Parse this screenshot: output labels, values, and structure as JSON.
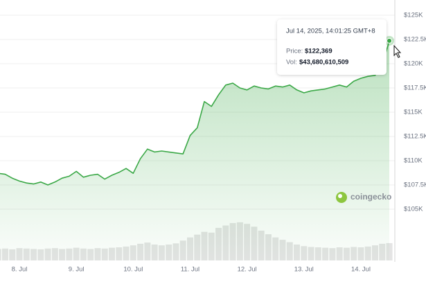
{
  "chart_data": {
    "type": "line",
    "categories": [
      null,
      null,
      null,
      "8. Jul",
      null,
      null,
      null,
      null,
      null,
      null,
      null,
      "9. Jul",
      null,
      null,
      null,
      null,
      null,
      null,
      null,
      "10. Jul",
      null,
      null,
      null,
      null,
      null,
      null,
      null,
      "11. Jul",
      null,
      null,
      null,
      null,
      null,
      null,
      null,
      "12. Jul",
      null,
      null,
      null,
      null,
      null,
      null,
      null,
      "13. Jul",
      null,
      null,
      null,
      null,
      null,
      null,
      null,
      "14. Jul",
      null,
      null,
      null,
      null
    ],
    "series": [
      {
        "name": "Price",
        "color": "#3aa846",
        "values": [
          108700,
          108600,
          108200,
          107900,
          107700,
          107600,
          107800,
          107500,
          107800,
          108200,
          108400,
          108900,
          108300,
          108500,
          108600,
          108100,
          108500,
          108800,
          109200,
          108700,
          110200,
          111200,
          110900,
          111000,
          110900,
          110800,
          110700,
          112600,
          113400,
          116100,
          115600,
          116800,
          117800,
          118000,
          117500,
          117300,
          117700,
          117500,
          117400,
          117700,
          117600,
          117800,
          117300,
          117000,
          117200,
          117300,
          117400,
          117600,
          117800,
          117600,
          118200,
          118500,
          118700,
          118800,
          119800,
          122369
        ]
      },
      {
        "name": "Volume",
        "color": "#e4e4e4",
        "axis": "y2",
        "values": [
          29000000000,
          30000000000,
          28000000000,
          31000000000,
          30000000000,
          29000000000,
          28000000000,
          30000000000,
          31000000000,
          29000000000,
          30000000000,
          32000000000,
          30000000000,
          29000000000,
          31000000000,
          30000000000,
          32000000000,
          33000000000,
          35000000000,
          38000000000,
          42000000000,
          45000000000,
          40000000000,
          38000000000,
          40000000000,
          43000000000,
          50000000000,
          58000000000,
          65000000000,
          72000000000,
          70000000000,
          82000000000,
          88000000000,
          94000000000,
          96000000000,
          92000000000,
          85000000000,
          75000000000,
          66000000000,
          58000000000,
          52000000000,
          46000000000,
          40000000000,
          36000000000,
          34000000000,
          33000000000,
          32000000000,
          31000000000,
          33000000000,
          32000000000,
          34000000000,
          33000000000,
          35000000000,
          38000000000,
          42000000000,
          43680610509
        ]
      }
    ],
    "ylim": [
      100000,
      126500
    ],
    "yticks": [
      {
        "value": 105000,
        "label": "$105K"
      },
      {
        "value": 107500,
        "label": "$107.5K"
      },
      {
        "value": 110000,
        "label": "$110K"
      },
      {
        "value": 112500,
        "label": "$112.5K"
      },
      {
        "value": 115000,
        "label": "$115K"
      },
      {
        "value": 117500,
        "label": "$117.5K"
      },
      {
        "value": 120000,
        "label": "$120K"
      },
      {
        "value": 122500,
        "label": "$122.5K"
      },
      {
        "value": 125000,
        "label": "$125K"
      }
    ],
    "y2lim": [
      0,
      650000000000
    ],
    "grid": true,
    "watermark": "coingecko",
    "tooltip": {
      "date": "Jul 14, 2025, 14:01:25 GMT+8",
      "price_label": "Price:",
      "price": "$122,369",
      "volume_label": "Vol:",
      "volume": "$43,680,610,509"
    }
  }
}
